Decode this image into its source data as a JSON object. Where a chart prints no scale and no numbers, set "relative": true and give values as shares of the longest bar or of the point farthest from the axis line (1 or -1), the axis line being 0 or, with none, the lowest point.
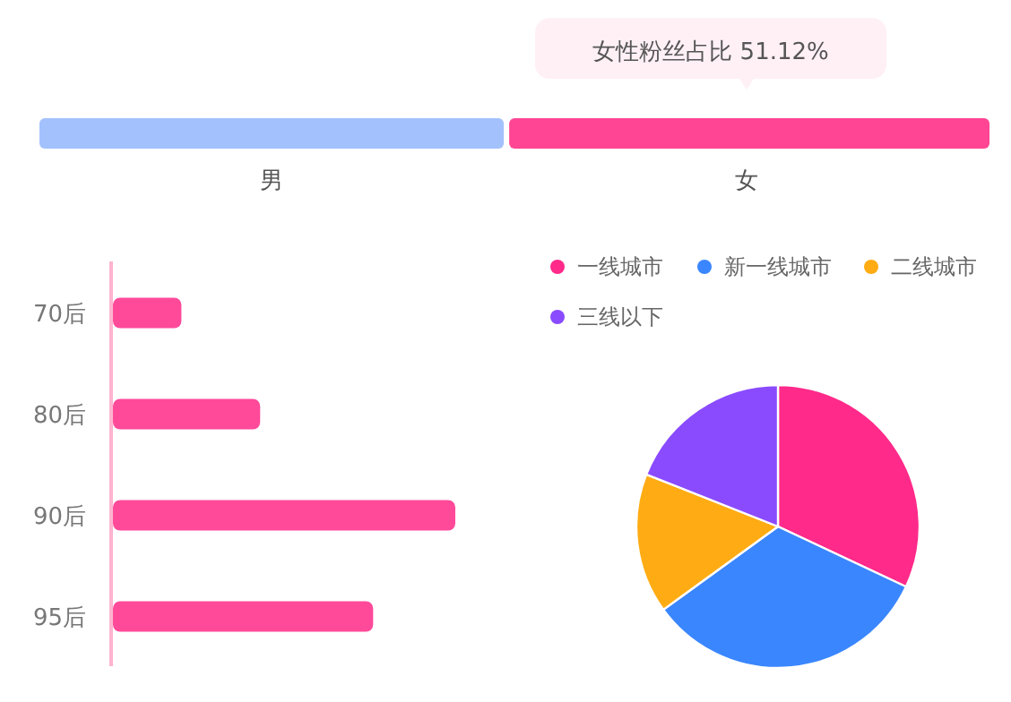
{
  "chart_data": [
    {
      "type": "bar",
      "orientation": "horizontal",
      "stacked": true,
      "relative": true,
      "annotations": [
        "女性粉丝占比 51.12%"
      ],
      "series": [
        {
          "name": "男",
          "color": "#a3c1fd",
          "values": [
            0.4888
          ]
        },
        {
          "name": "女",
          "color": "#ff4593",
          "values": [
            0.5112
          ]
        }
      ]
    },
    {
      "type": "bar",
      "orientation": "horizontal",
      "relative": true,
      "categories": [
        "70后",
        "80后",
        "90后",
        "95后"
      ],
      "values": [
        0.2,
        0.43,
        1,
        0.76
      ],
      "color": "#ff4a9a"
    },
    {
      "type": "pie",
      "categories": [
        "一线城市",
        "新一线城市",
        "二线城市",
        "三线以下"
      ],
      "values": [
        32,
        33,
        16,
        19
      ],
      "colors": [
        "#ff2a8a",
        "#3a86ff",
        "#ffac14",
        "#8a4bff"
      ],
      "legend": "top"
    }
  ]
}
